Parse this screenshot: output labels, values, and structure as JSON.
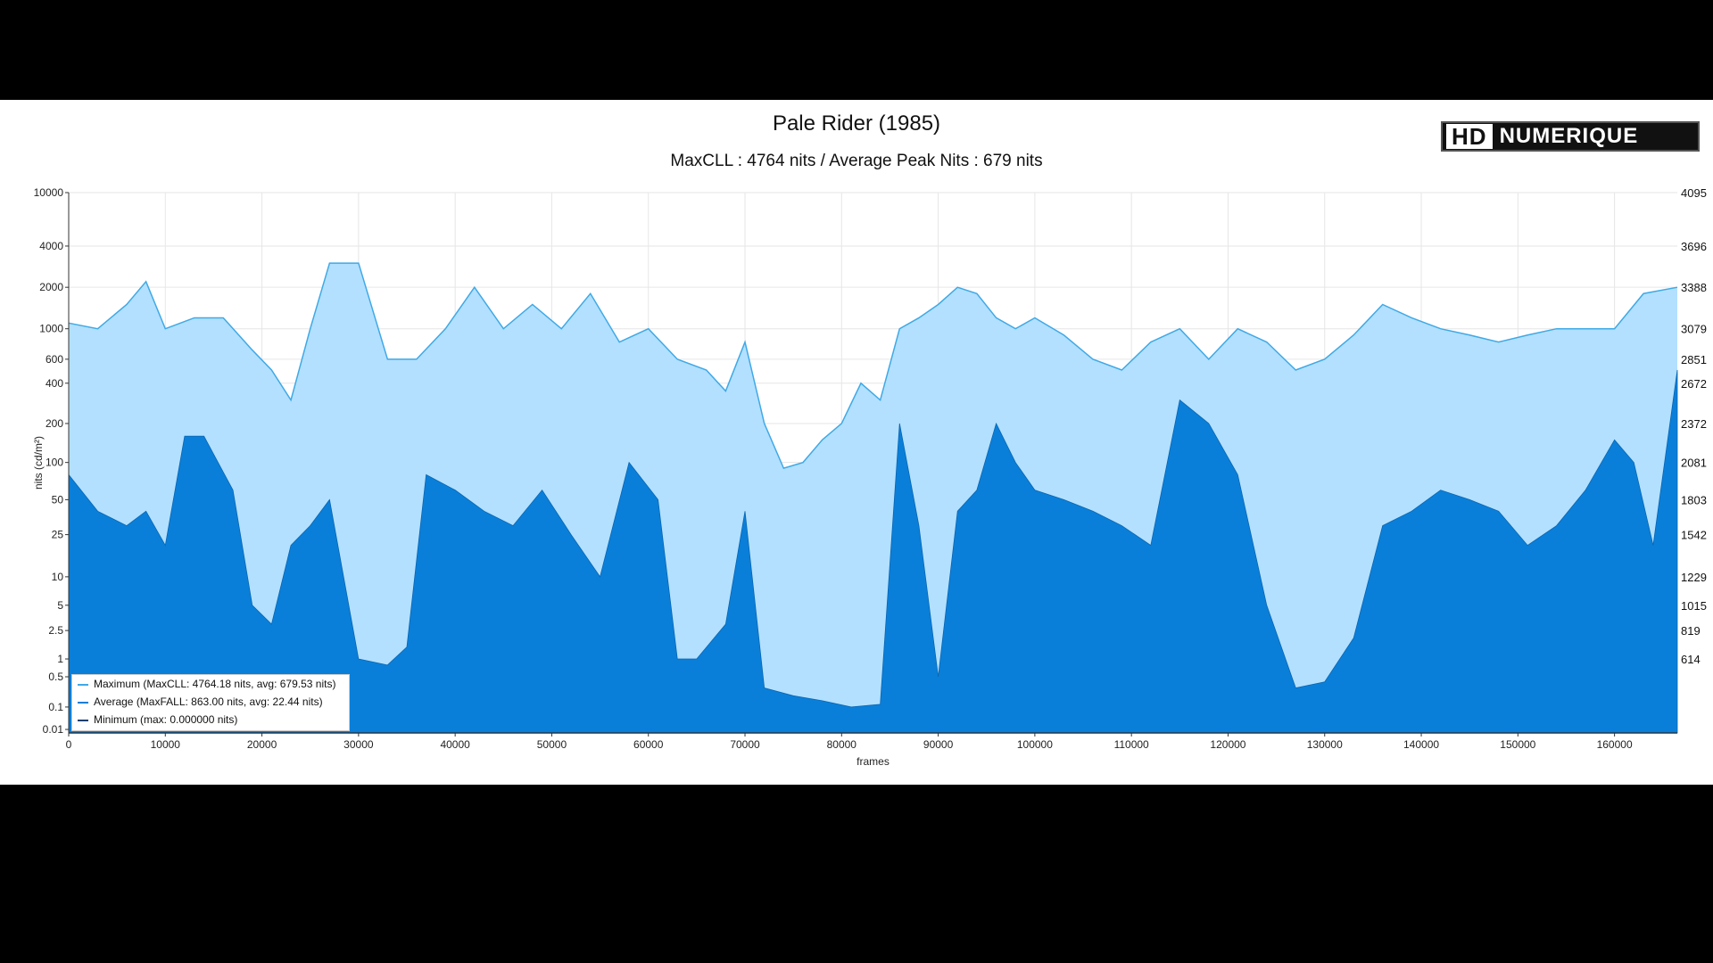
{
  "logo": {
    "part1": "HD",
    "part2": "NUMERIQUE"
  },
  "chart_data": {
    "type": "area",
    "title": "Pale Rider (1985)",
    "subtitle": "MaxCLL : 4764 nits / Average Peak Nits : 679 nits",
    "xlabel": "frames",
    "ylabel": "nits (cd/m²)",
    "xlim": [
      0,
      166500
    ],
    "ylim": [
      0.005,
      10000
    ],
    "yscale": "pq",
    "grid": true,
    "legend_position": "bottom-left",
    "x_ticks": [
      "0",
      "10000",
      "20000",
      "30000",
      "40000",
      "50000",
      "60000",
      "70000",
      "80000",
      "90000",
      "100000",
      "110000",
      "120000",
      "130000",
      "140000",
      "150000",
      "160000"
    ],
    "y_ticks": [
      "10000",
      "4000",
      "2000",
      "1000",
      "600",
      "400",
      "200",
      "100",
      "50",
      "25",
      "10",
      "5",
      "2.5",
      "1",
      "0.5",
      "0.1",
      "0.01"
    ],
    "y_right_ticks": [
      "4095",
      "3696",
      "3388",
      "3079",
      "2851",
      "2672",
      "2372",
      "2081",
      "1803",
      "1542",
      "1229",
      "1015",
      "819",
      "614"
    ],
    "colors": {
      "maximum": "#b3e0ff",
      "maximum_line": "#3fa9e6",
      "average": "#0a7fd9",
      "minimum": "#0a3f6e"
    },
    "legend": [
      "Maximum (MaxCLL: 4764.18 nits, avg: 679.53 nits)",
      "Average (MaxFALL: 863.00 nits, avg: 22.44 nits)",
      "Minimum (max: 0.000000 nits)"
    ],
    "series": [
      {
        "name": "Maximum",
        "x": [
          0,
          3000,
          6000,
          8000,
          10000,
          13000,
          16000,
          19000,
          21000,
          23000,
          25000,
          27000,
          30000,
          33000,
          36000,
          39000,
          42000,
          45000,
          48000,
          51000,
          54000,
          57000,
          60000,
          63000,
          66000,
          68000,
          70000,
          72000,
          74000,
          76000,
          78000,
          80000,
          82000,
          84000,
          86000,
          88000,
          90000,
          92000,
          94000,
          96000,
          98000,
          100000,
          103000,
          106000,
          109000,
          112000,
          115000,
          118000,
          121000,
          124000,
          127000,
          130000,
          133000,
          136000,
          139000,
          142000,
          145000,
          148000,
          151000,
          154000,
          157000,
          160000,
          163000,
          166500
        ],
        "values": [
          1100,
          1000,
          1500,
          2200,
          1000,
          1200,
          1200,
          700,
          500,
          300,
          1000,
          3000,
          3000,
          600,
          600,
          1000,
          2000,
          1000,
          1500,
          1000,
          1800,
          800,
          1000,
          600,
          500,
          350,
          800,
          200,
          90,
          100,
          150,
          200,
          400,
          300,
          1000,
          1200,
          1500,
          2000,
          1800,
          1200,
          1000,
          1200,
          900,
          600,
          500,
          800,
          1000,
          600,
          1000,
          800,
          500,
          600,
          900,
          1500,
          1200,
          1000,
          900,
          800,
          900,
          1000,
          1000,
          1000,
          1800,
          2000
        ]
      },
      {
        "name": "Average",
        "x": [
          0,
          3000,
          6000,
          8000,
          10000,
          12000,
          14000,
          17000,
          19000,
          21000,
          23000,
          25000,
          27000,
          30000,
          33000,
          35000,
          37000,
          40000,
          43000,
          46000,
          49000,
          52000,
          55000,
          58000,
          61000,
          63000,
          65000,
          68000,
          70000,
          72000,
          75000,
          78000,
          81000,
          84000,
          86000,
          88000,
          90000,
          92000,
          94000,
          96000,
          98000,
          100000,
          103000,
          106000,
          109000,
          112000,
          115000,
          118000,
          121000,
          124000,
          127000,
          130000,
          133000,
          136000,
          139000,
          142000,
          145000,
          148000,
          151000,
          154000,
          157000,
          160000,
          162000,
          164000,
          166500
        ],
        "values": [
          80,
          40,
          30,
          40,
          20,
          160,
          160,
          60,
          5,
          3,
          20,
          30,
          50,
          1,
          0.8,
          1.5,
          80,
          60,
          40,
          30,
          60,
          25,
          10,
          100,
          50,
          1,
          1,
          3,
          40,
          0.3,
          0.2,
          0.15,
          0.1,
          0.12,
          200,
          30,
          0.5,
          40,
          60,
          200,
          100,
          60,
          50,
          40,
          30,
          20,
          300,
          200,
          80,
          5,
          0.3,
          0.4,
          2,
          30,
          40,
          60,
          50,
          40,
          20,
          30,
          60,
          150,
          100,
          20,
          500
        ]
      },
      {
        "name": "Minimum",
        "x": [
          0,
          166500
        ],
        "values": [
          0,
          0
        ]
      }
    ]
  }
}
